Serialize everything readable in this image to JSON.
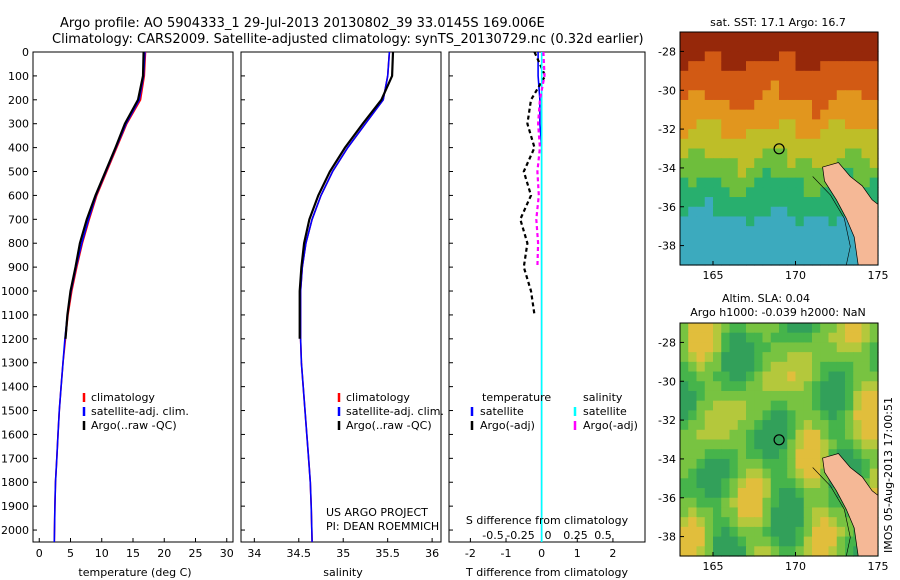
{
  "header": {
    "line1": "Argo profile: AO 5904333_1 29-Jul-2013 20130802_39 33.0145S 169.006E",
    "line2": "Climatology: CARS2009. Satellite-adjusted climatology: synTS_20130729.nc (0.32d earlier)"
  },
  "colors": {
    "climatology": "#ff0000",
    "satellite": "#0000ff",
    "argo": "#000000",
    "salinity_satellite": "#00ffff",
    "salinity_argo": "#ff00ff",
    "land": "#f5b896"
  },
  "axes": {
    "depth_ticks": [
      "0",
      "100",
      "200",
      "300",
      "400",
      "500",
      "600",
      "700",
      "800",
      "900",
      "1000",
      "1100",
      "1200",
      "1300",
      "1400",
      "1500",
      "1600",
      "1700",
      "1800",
      "1900",
      "2000"
    ],
    "temp_ticks": [
      "0",
      "5",
      "10",
      "15",
      "20",
      "25",
      "30"
    ],
    "temp_label": "temperature (deg C)",
    "sal_ticks": [
      "34",
      "34.5",
      "35",
      "35.5",
      "36"
    ],
    "sal_label": "salinity",
    "tdiff_ticks": [
      "-2",
      "-1",
      "0",
      "1",
      "2"
    ],
    "tdiff_label": "T difference from climatology",
    "sdiff_ticks": [
      "-0.5",
      "-0.25",
      "0",
      "0.25",
      "0.5"
    ],
    "sdiff_label": "S difference from climatology"
  },
  "legends": {
    "profile": [
      "climatology",
      "satellite-adj. clim.",
      "Argo(..raw -QC)"
    ],
    "diff_temp_title": "temperature",
    "diff_sal_title": "salinity",
    "diff_items": [
      "satellite",
      "Argo(-adj)"
    ]
  },
  "credits": {
    "line1": "US ARGO PROJECT",
    "line2": "PI: DEAN ROEMMICH"
  },
  "maps": {
    "sst_title": "sat. SST: 17.1  Argo: 16.7",
    "sla_title1": "Altim. SLA: 0.04",
    "sla_title2": "Argo h1000: -0.039  h2000: NaN",
    "lon_ticks": [
      "165",
      "170",
      "175"
    ],
    "lat_ticks": [
      "-28",
      "-30",
      "-32",
      "-34",
      "-36",
      "-38"
    ]
  },
  "footer": {
    "stamp": "IMOS 05-Aug-2013 17:00:51"
  },
  "chart_data": [
    {
      "type": "line",
      "title": "",
      "xlabel": "temperature (deg C)",
      "ylabel": "",
      "xlim": [
        -1,
        31
      ],
      "ylim": [
        2050,
        0
      ],
      "series": [
        {
          "name": "climatology",
          "x": [
            17.0,
            16.8,
            16.2,
            14.0,
            12.4,
            10.8,
            9.2,
            8.0,
            6.9,
            6.0,
            5.2,
            4.6,
            4.2,
            3.8,
            3.5,
            3.2,
            3.0,
            2.8,
            2.6,
            2.5,
            2.4
          ],
          "y": [
            0,
            100,
            200,
            300,
            400,
            500,
            600,
            700,
            800,
            900,
            1000,
            1100,
            1200,
            1300,
            1400,
            1500,
            1600,
            1700,
            1800,
            1900,
            2050
          ]
        },
        {
          "name": "satellite-adj. clim.",
          "x": [
            16.9,
            16.7,
            16.0,
            13.9,
            12.3,
            10.7,
            9.1,
            7.9,
            6.8,
            5.9,
            5.1,
            4.5,
            4.1,
            3.8,
            3.5,
            3.2,
            3.0,
            2.8,
            2.6,
            2.5,
            2.4
          ],
          "y": [
            0,
            100,
            200,
            300,
            400,
            500,
            600,
            700,
            800,
            900,
            1000,
            1100,
            1200,
            1300,
            1400,
            1500,
            1600,
            1700,
            1800,
            1900,
            2050
          ]
        },
        {
          "name": "Argo(..raw -QC)",
          "x": [
            16.7,
            16.6,
            15.8,
            13.7,
            12.2,
            10.6,
            9.0,
            7.6,
            6.5,
            5.8,
            5.0,
            4.5,
            4.2
          ],
          "y": [
            0,
            100,
            200,
            300,
            400,
            500,
            600,
            700,
            800,
            900,
            1000,
            1100,
            1200
          ]
        }
      ]
    },
    {
      "type": "line",
      "title": "",
      "xlabel": "salinity",
      "ylabel": "",
      "xlim": [
        33.85,
        36.1
      ],
      "ylim": [
        2050,
        0
      ],
      "series": [
        {
          "name": "climatology",
          "x": [
            35.52,
            35.5,
            35.45,
            35.25,
            35.05,
            34.88,
            34.75,
            34.65,
            34.58,
            34.54,
            34.52,
            34.52,
            34.52,
            34.53,
            34.55,
            34.57,
            34.59,
            34.61,
            34.63,
            34.64,
            34.65
          ],
          "y": [
            0,
            100,
            200,
            300,
            400,
            500,
            600,
            700,
            800,
            900,
            1000,
            1100,
            1200,
            1300,
            1400,
            1500,
            1600,
            1700,
            1800,
            1900,
            2050
          ]
        },
        {
          "name": "satellite-adj. clim.",
          "x": [
            35.52,
            35.5,
            35.45,
            35.25,
            35.05,
            34.88,
            34.75,
            34.65,
            34.58,
            34.54,
            34.52,
            34.52,
            34.52,
            34.53,
            34.55,
            34.57,
            34.59,
            34.61,
            34.63,
            34.64,
            34.65
          ],
          "y": [
            0,
            100,
            200,
            300,
            400,
            500,
            600,
            700,
            800,
            900,
            1000,
            1100,
            1200,
            1300,
            1400,
            1500,
            1600,
            1700,
            1800,
            1900,
            2050
          ]
        },
        {
          "name": "Argo(..raw -QC)",
          "x": [
            35.56,
            35.55,
            35.43,
            35.22,
            35.02,
            34.85,
            34.72,
            34.62,
            34.56,
            34.53,
            34.51,
            34.51,
            34.51
          ],
          "y": [
            0,
            100,
            200,
            300,
            400,
            500,
            600,
            700,
            800,
            900,
            1000,
            1100,
            1200
          ]
        }
      ]
    },
    {
      "type": "line",
      "title": "",
      "xlabel": "T difference from climatology",
      "ylabel": "",
      "xlim": [
        -2.6,
        2.9
      ],
      "ylim": [
        2050,
        0
      ],
      "series": [
        {
          "name": "temperature satellite",
          "x": [
            -0.1,
            -0.1,
            -0.05,
            -0.05,
            0,
            0,
            0,
            0,
            0,
            0,
            0,
            0,
            0,
            0,
            0
          ],
          "y": [
            0,
            100,
            200,
            300,
            400,
            500,
            600,
            700,
            800,
            900,
            1000,
            1200,
            1500,
            1800,
            2050
          ]
        },
        {
          "name": "temperature Argo(-adj)",
          "x": [
            -0.2,
            0.1,
            -0.3,
            -0.4,
            -0.2,
            -0.5,
            -0.3,
            -0.6,
            -0.4,
            -0.5,
            -0.3,
            -0.2
          ],
          "y": [
            0,
            100,
            200,
            300,
            400,
            500,
            600,
            700,
            800,
            900,
            1000,
            1100
          ]
        },
        {
          "name": "salinity satellite",
          "x": [
            0,
            0,
            0,
            0,
            0,
            0,
            0,
            0,
            0,
            0,
            0,
            0,
            0,
            0,
            0
          ],
          "y": [
            0,
            100,
            200,
            300,
            400,
            500,
            600,
            700,
            800,
            900,
            1000,
            1200,
            1500,
            1800,
            2050
          ]
        },
        {
          "name": "salinity Argo(-adj)",
          "x": [
            0.05,
            0.08,
            -0.05,
            -0.1,
            -0.05,
            -0.12,
            -0.08,
            -0.15,
            -0.1,
            -0.12
          ],
          "y": [
            0,
            100,
            200,
            300,
            400,
            500,
            600,
            700,
            800,
            900
          ]
        }
      ]
    },
    {
      "type": "heatmap",
      "title": "sat. SST: 17.1  Argo: 16.7",
      "x_range": [
        163,
        175
      ],
      "y_range": [
        -39,
        -27
      ]
    },
    {
      "type": "heatmap",
      "title": "Altim. SLA: 0.04 / Argo h1000: -0.039  h2000: NaN",
      "x_range": [
        163,
        175
      ],
      "y_range": [
        -39,
        -27
      ]
    }
  ]
}
